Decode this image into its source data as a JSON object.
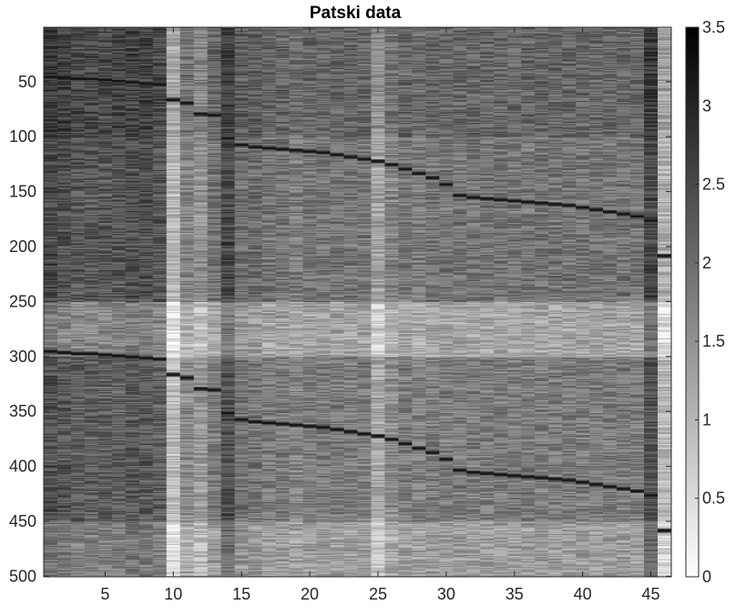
{
  "chart_data": {
    "type": "heatmap",
    "title": "Patski data",
    "xlabel": "",
    "ylabel": "",
    "colormap": "gray-reversed",
    "color_low": "#ffffff",
    "color_high": "#000000",
    "x": {
      "lim": [
        0.5,
        46.5
      ],
      "ticks": [
        5,
        10,
        15,
        20,
        25,
        30,
        35,
        40,
        45
      ],
      "columns": 46
    },
    "y": {
      "lim": [
        0.5,
        500.5
      ],
      "reversed": true,
      "ticks": [
        50,
        100,
        150,
        200,
        250,
        300,
        350,
        400,
        450,
        500
      ],
      "rows": 500
    },
    "colorbar": {
      "lim": [
        0,
        3.5
      ],
      "ticks": [
        0,
        0.5,
        1,
        1.5,
        2,
        2.5,
        3,
        3.5
      ],
      "location": "right"
    },
    "value_range": [
      0,
      3.5
    ],
    "column_baseline": [
      2.4,
      2.3,
      2.2,
      2.2,
      2.2,
      2.2,
      2.3,
      2.3,
      2.2,
      0.9,
      1.6,
      1.4,
      1.8,
      2.4,
      1.9,
      1.9,
      1.8,
      1.8,
      1.7,
      1.8,
      1.8,
      1.8,
      1.8,
      1.8,
      1.2,
      1.6,
      1.8,
      1.7,
      1.8,
      1.8,
      1.8,
      1.8,
      1.8,
      1.8,
      1.8,
      1.8,
      1.8,
      1.8,
      1.8,
      1.8,
      1.8,
      1.8,
      1.8,
      1.8,
      2.4,
      1.0
    ],
    "row_bands": [
      {
        "rows": [
          1,
          100
        ],
        "offset": 0.3
      },
      {
        "rows": [
          101,
          250
        ],
        "offset": 0.1
      },
      {
        "rows": [
          251,
          300
        ],
        "offset": -0.55
      },
      {
        "rows": [
          301,
          450
        ],
        "offset": 0.0
      },
      {
        "rows": [
          451,
          500
        ],
        "offset": -0.45
      }
    ],
    "dark_traces": [
      {
        "value": 3.2,
        "rows_by_column": [
          45,
          46,
          47,
          47,
          48,
          49,
          50,
          51,
          52,
          66,
          69,
          79,
          80,
          101,
          107,
          109,
          110,
          111,
          112,
          113,
          114,
          116,
          118,
          120,
          122,
          125,
          129,
          133,
          137,
          143,
          153,
          155,
          156,
          157,
          158,
          159,
          160,
          161,
          162,
          164,
          166,
          168,
          170,
          172,
          176,
          208
        ]
      },
      {
        "value": 3.2,
        "rows_by_column": [
          295,
          296,
          297,
          297,
          298,
          299,
          300,
          301,
          302,
          316,
          319,
          329,
          330,
          351,
          357,
          359,
          360,
          361,
          362,
          363,
          364,
          366,
          368,
          370,
          372,
          375,
          379,
          383,
          387,
          393,
          403,
          405,
          406,
          407,
          408,
          409,
          410,
          411,
          412,
          414,
          416,
          418,
          420,
          422,
          426,
          458
        ]
      }
    ]
  }
}
